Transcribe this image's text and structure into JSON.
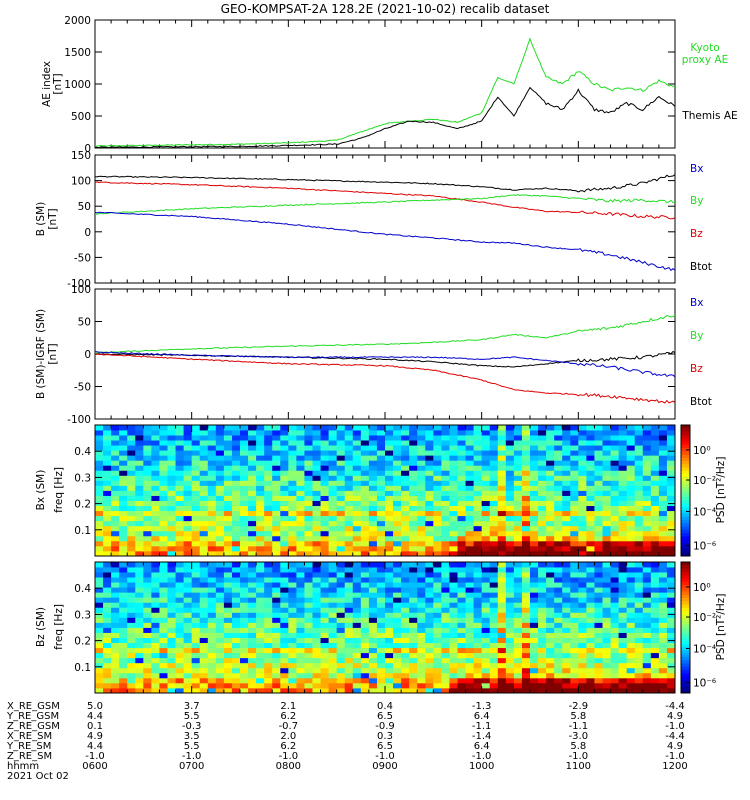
{
  "title": "GEO-KOMPSAT-2A 128.2E (2021-10-02) recalib dataset",
  "colors": {
    "black": "#000000",
    "red": "#dd0000",
    "green": "#22dd22",
    "blue": "#0000cc",
    "kyoto": "#22dd22"
  },
  "chart_data": [
    {
      "type": "line",
      "ylabel": "AE index [nT]",
      "ylim": [
        0,
        2000
      ],
      "yticks": [
        "0",
        "500",
        "1000",
        "1500",
        "2000"
      ],
      "legend": [
        "Kyoto proxy AE",
        "Themis AE"
      ],
      "x": [
        "0600",
        "0630",
        "0700",
        "0730",
        "0800",
        "0830",
        "0845",
        "0900",
        "0915",
        "0930",
        "0945",
        "1000",
        "1010",
        "1020",
        "1030",
        "1040",
        "1050",
        "1100",
        "1110",
        "1120",
        "1130",
        "1140",
        "1150",
        "1200"
      ],
      "series": [
        {
          "name": "Kyoto proxy AE",
          "color": "green",
          "values": [
            30,
            40,
            50,
            60,
            80,
            120,
            250,
            380,
            420,
            450,
            400,
            550,
            1100,
            1000,
            1700,
            1100,
            1000,
            1200,
            1000,
            900,
            950,
            900,
            1050,
            950
          ]
        },
        {
          "name": "Themis AE",
          "color": "black",
          "values": [
            10,
            15,
            20,
            25,
            40,
            60,
            150,
            300,
            420,
            400,
            300,
            420,
            800,
            500,
            950,
            700,
            600,
            900,
            600,
            550,
            700,
            600,
            800,
            650
          ]
        }
      ]
    },
    {
      "type": "line",
      "ylabel": "B (SM) [nT]",
      "ylim": [
        -100,
        150
      ],
      "yticks": [
        "-100",
        "-50",
        "0",
        "50",
        "100",
        "150"
      ],
      "legend": [
        "Bx",
        "By",
        "Bz",
        "Btot"
      ],
      "x": [
        "0600",
        "0700",
        "0800",
        "0900",
        "0930",
        "1000",
        "1020",
        "1040",
        "1100",
        "1120",
        "1140",
        "1200"
      ],
      "series": [
        {
          "name": "Btot",
          "color": "black",
          "values": [
            108,
            106,
            102,
            97,
            94,
            88,
            82,
            85,
            80,
            85,
            95,
            112
          ]
        },
        {
          "name": "Bz",
          "color": "red",
          "values": [
            97,
            92,
            85,
            75,
            70,
            58,
            48,
            40,
            38,
            35,
            30,
            28
          ]
        },
        {
          "name": "By",
          "color": "green",
          "values": [
            35,
            45,
            52,
            58,
            62,
            65,
            72,
            70,
            65,
            60,
            62,
            58
          ]
        },
        {
          "name": "Bx",
          "color": "blue",
          "values": [
            38,
            30,
            15,
            -5,
            -12,
            -20,
            -22,
            -30,
            -35,
            -45,
            -60,
            -75
          ]
        }
      ]
    },
    {
      "type": "line",
      "ylabel": "B (SM)-IGRF (SM) [nT]",
      "ylim": [
        -100,
        100
      ],
      "yticks": [
        "-100",
        "-50",
        "0",
        "50",
        "100"
      ],
      "legend": [
        "Bx",
        "By",
        "Bz",
        "Btot"
      ],
      "x": [
        "0600",
        "0700",
        "0800",
        "0900",
        "0930",
        "1000",
        "1020",
        "1040",
        "1100",
        "1120",
        "1140",
        "1200"
      ],
      "series": [
        {
          "name": "By",
          "color": "green",
          "values": [
            2,
            8,
            12,
            15,
            18,
            22,
            30,
            25,
            35,
            40,
            50,
            60
          ]
        },
        {
          "name": "Btot",
          "color": "black",
          "values": [
            0,
            -2,
            -5,
            -8,
            -12,
            -18,
            -20,
            -15,
            -10,
            -8,
            -5,
            2
          ]
        },
        {
          "name": "Bx",
          "color": "blue",
          "values": [
            3,
            -2,
            -5,
            -5,
            -5,
            -8,
            -5,
            -10,
            -15,
            -20,
            -28,
            -35
          ]
        },
        {
          "name": "Bz",
          "color": "red",
          "values": [
            0,
            -8,
            -15,
            -18,
            -25,
            -40,
            -55,
            -60,
            -62,
            -65,
            -70,
            -75
          ]
        }
      ]
    },
    {
      "type": "heatmap",
      "ylabel": "Bx (SM) freq [Hz]",
      "ylim": [
        0,
        0.5
      ],
      "yticks": [
        "0.1",
        "0.2",
        "0.3",
        "0.4"
      ],
      "colorbar_label": "PSD [nT²/Hz]",
      "colorbar_ticks": [
        "10⁰",
        "10⁻²",
        "10⁻⁴",
        "10⁻⁶"
      ]
    },
    {
      "type": "heatmap",
      "ylabel": "Bz (SM) freq [Hz]",
      "ylim": [
        0,
        0.5
      ],
      "yticks": [
        "0.1",
        "0.2",
        "0.3",
        "0.4"
      ],
      "colorbar_label": "PSD [nT²/Hz]",
      "colorbar_ticks": [
        "10⁰",
        "10⁻²",
        "10⁻⁴",
        "10⁻⁶"
      ]
    }
  ],
  "orbit": {
    "labels": [
      "X_RE_GSM",
      "Y_RE_GSM",
      "Z_RE_GSM",
      "X_RE_SM",
      "Y_RE_SM",
      "Z_RE_SM",
      "hhmm",
      "2021 Oct 02"
    ],
    "columns": [
      [
        "5.0",
        "4.4",
        "0.1",
        "4.9",
        "4.4",
        "-1.0",
        "0600"
      ],
      [
        "3.7",
        "5.5",
        "-0.3",
        "3.5",
        "5.5",
        "-1.0",
        "0700"
      ],
      [
        "2.1",
        "6.2",
        "-0.7",
        "2.0",
        "6.2",
        "-1.0",
        "0800"
      ],
      [
        "0.4",
        "6.5",
        "-0.9",
        "0.3",
        "6.5",
        "-1.0",
        "0900"
      ],
      [
        "-1.3",
        "6.4",
        "-1.1",
        "-1.4",
        "6.4",
        "-1.0",
        "1000"
      ],
      [
        "-2.9",
        "5.8",
        "-1.1",
        "-3.0",
        "5.8",
        "-1.0",
        "1100"
      ],
      [
        "-4.4",
        "4.9",
        "-1.0",
        "-4.4",
        "4.9",
        "-1.0",
        "1200"
      ]
    ]
  }
}
